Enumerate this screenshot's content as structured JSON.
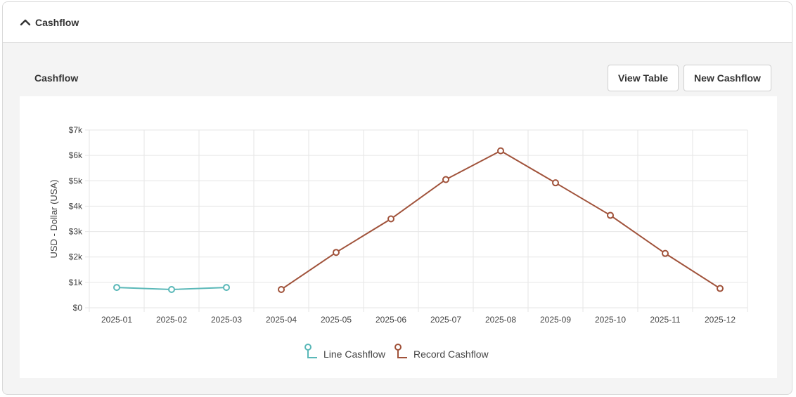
{
  "header": {
    "title": "Cashflow"
  },
  "section": {
    "title": "Cashflow"
  },
  "toolbar": {
    "view_table_label": "View Table",
    "new_cashflow_label": "New Cashflow"
  },
  "icons": {
    "collapse": "chevron-up-icon"
  },
  "chart_data": {
    "type": "line",
    "categories": [
      "2025-01",
      "2025-02",
      "2025-03",
      "2025-04",
      "2025-05",
      "2025-06",
      "2025-07",
      "2025-08",
      "2025-09",
      "2025-10",
      "2025-11",
      "2025-12"
    ],
    "ylabel": "USD - Dollar (USA)",
    "ylim": [
      0,
      7000
    ],
    "yticks": [
      0,
      1000,
      2000,
      3000,
      4000,
      5000,
      6000,
      7000
    ],
    "ytick_labels": [
      "$0",
      "$1k",
      "$2k",
      "$3k",
      "$4k",
      "$5k",
      "$6k",
      "$7k"
    ],
    "grid": true,
    "legend_position": "bottom-center",
    "series": [
      {
        "name": "Line Cashflow",
        "color": "#5ab8b8",
        "values": [
          800,
          720,
          800,
          null,
          null,
          null,
          null,
          null,
          null,
          null,
          null,
          null
        ]
      },
      {
        "name": "Record Cashflow",
        "color": "#a0523a",
        "values": [
          null,
          null,
          null,
          720,
          2180,
          3500,
          5050,
          6180,
          4920,
          3640,
          2140,
          760
        ]
      }
    ]
  }
}
